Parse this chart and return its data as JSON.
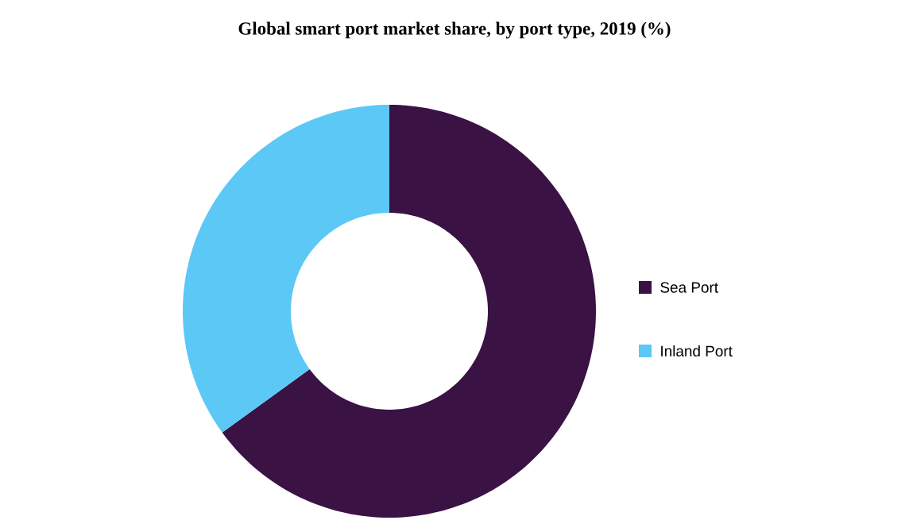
{
  "chart_data": {
    "type": "donut",
    "title": "Global smart port market share, by port type, 2019 (%)",
    "categories": [
      "Sea Port",
      "Inland Port"
    ],
    "values": [
      65,
      35
    ],
    "colors": [
      "#3a1244",
      "#5bc8f5"
    ],
    "legend": "right"
  }
}
